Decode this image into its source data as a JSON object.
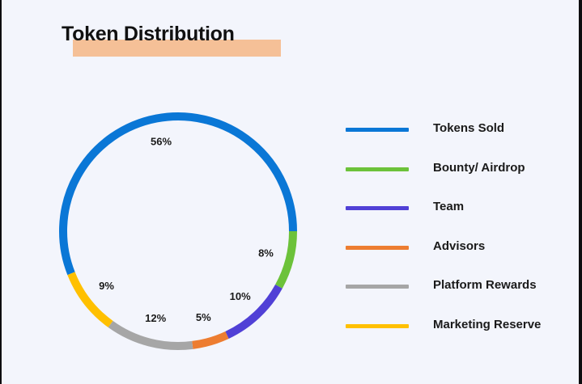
{
  "title": "Token Distribution",
  "colors": {
    "background": "#f3f5fc",
    "title_highlight": "#f5c097"
  },
  "chart_data": {
    "type": "pie",
    "style": "ring",
    "legend_position": "right",
    "series": [
      {
        "name": "Tokens Sold",
        "value": 56,
        "label": "56%",
        "color": "#0a77d6"
      },
      {
        "name": "Bounty/ Airdrop",
        "value": 8,
        "label": "8%",
        "color": "#6cc23a"
      },
      {
        "name": "Team",
        "value": 10,
        "label": "10%",
        "color": "#5040d6"
      },
      {
        "name": "Advisors",
        "value": 5,
        "label": "5%",
        "color": "#ed7d31"
      },
      {
        "name": "Platform Rewards",
        "value": 12,
        "label": "12%",
        "color": "#a6a6a6"
      },
      {
        "name": "Marketing Reserve",
        "value": 9,
        "label": "9%",
        "color": "#ffc000"
      }
    ]
  }
}
